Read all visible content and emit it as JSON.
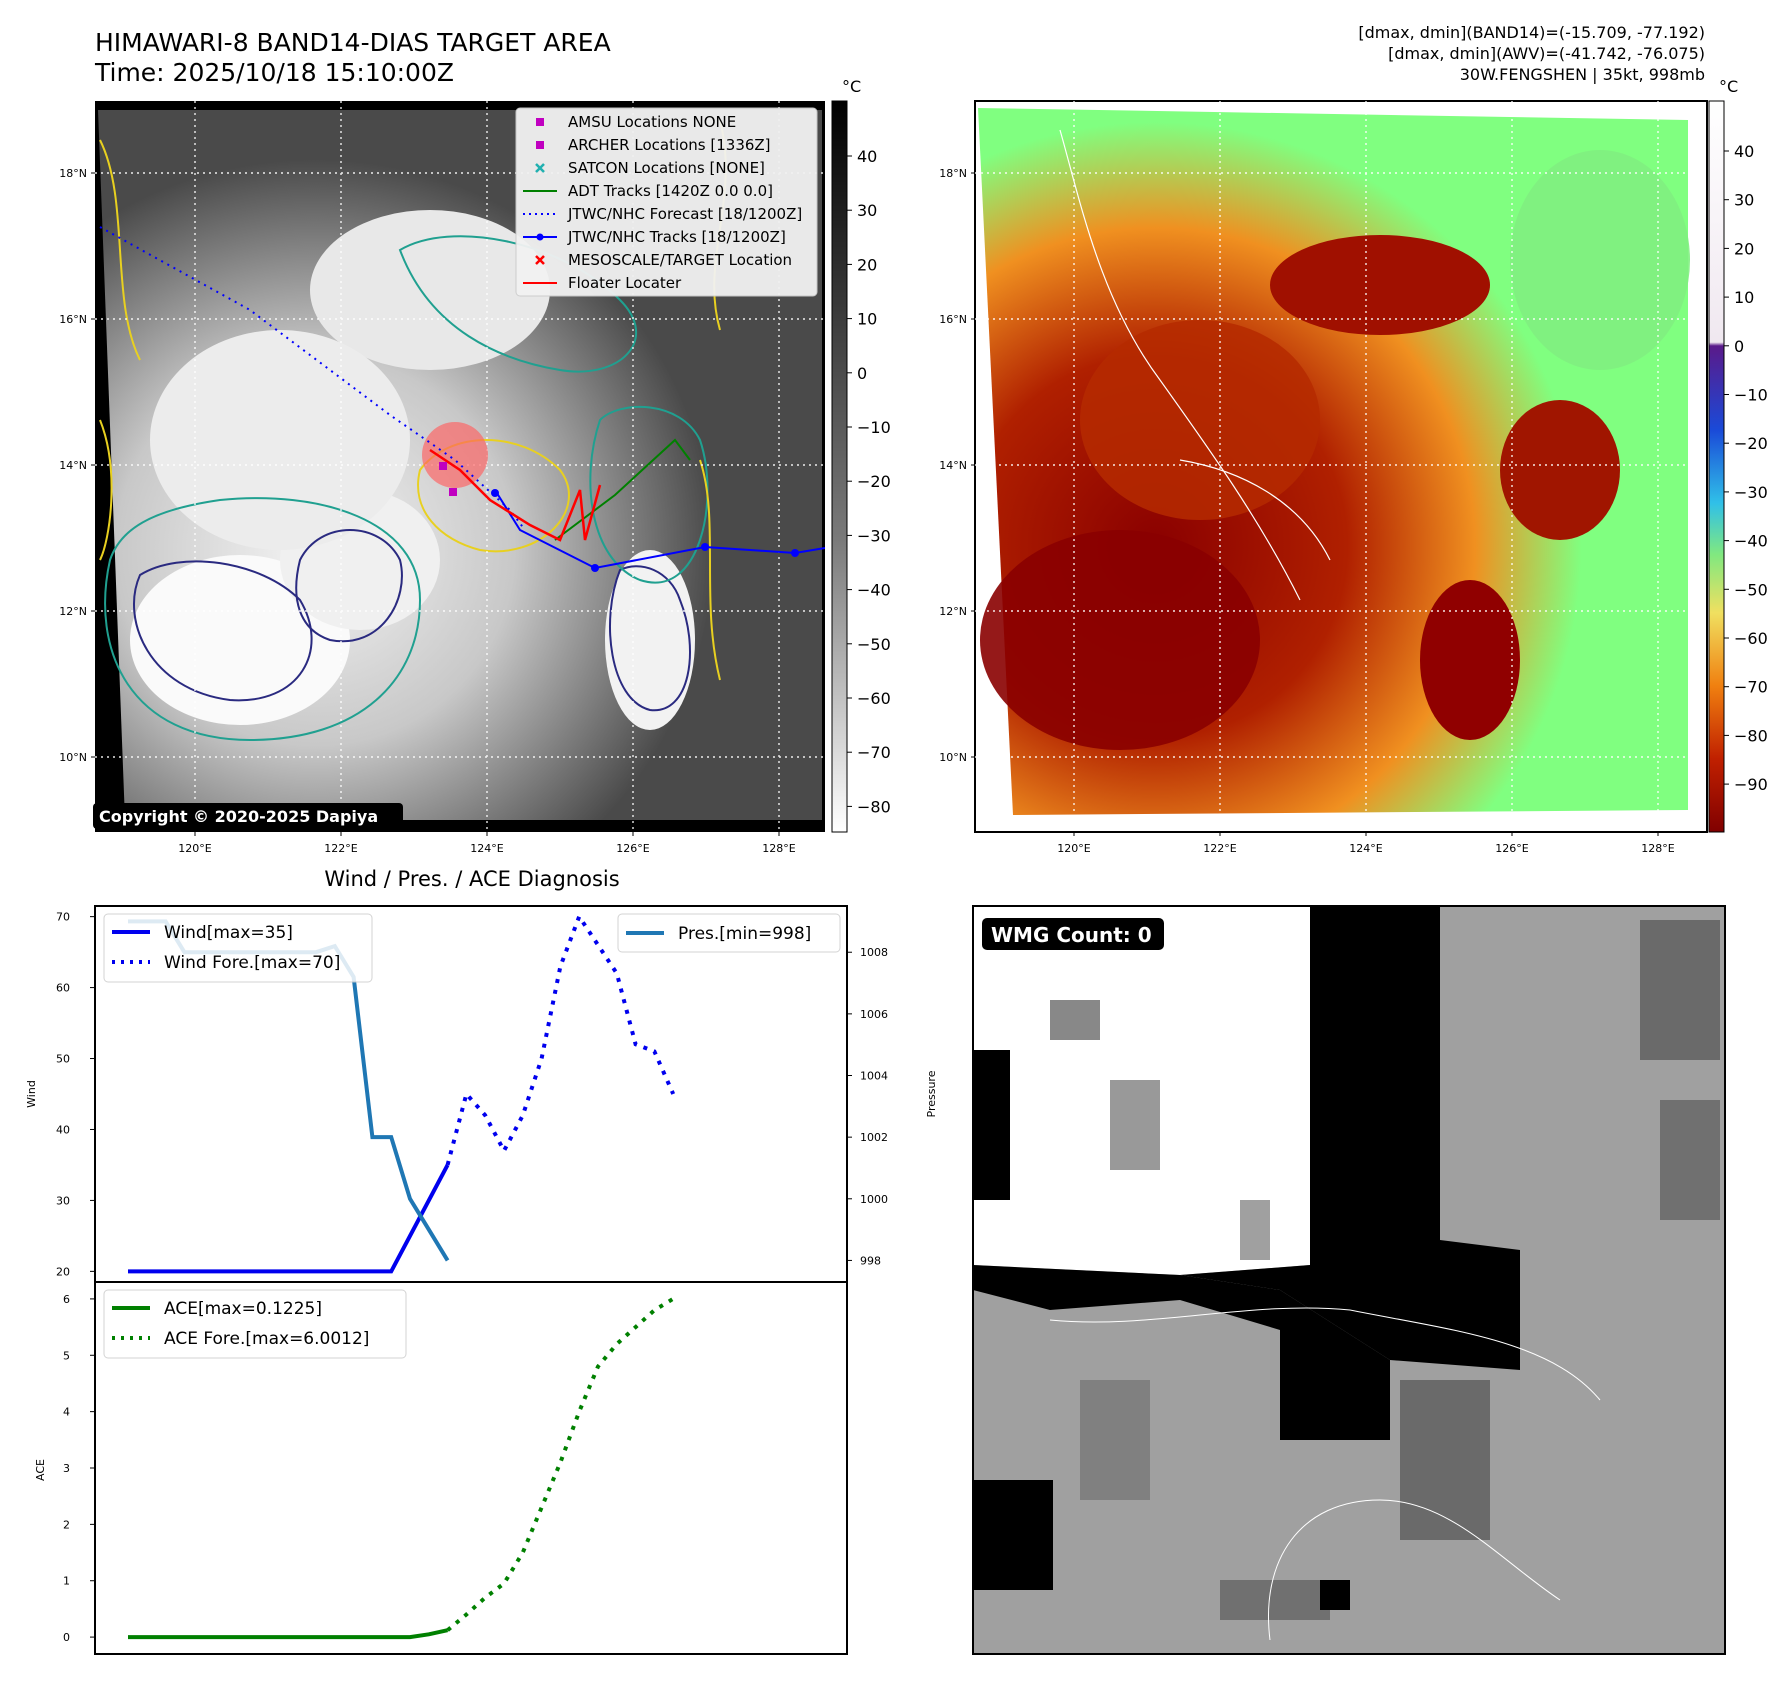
{
  "header": {
    "title_line1": "HIMAWARI-8 BAND14-DIAS TARGET AREA",
    "title_line2": "Time: 2025/10/18 15:10:00Z",
    "info_line1": "[dmax, dmin](BAND14)=(-15.709, -77.192)",
    "info_line2": "[dmax, dmin](AWV)=(-41.742, -76.075)",
    "info_line3": "30W.FENGSHEN | 35kt, 998mb"
  },
  "ir_panel": {
    "copyright": "Copyright © 2020-2025 Dapiya",
    "colorbar_unit": "°C",
    "colorbar_ticks": [
      "40",
      "30",
      "20",
      "10",
      "0",
      "−10",
      "−20",
      "−30",
      "−40",
      "−50",
      "−60",
      "−70",
      "−80"
    ],
    "lat_labels": [
      "18°N",
      "16°N",
      "14°N",
      "12°N",
      "10°N"
    ],
    "lon_labels": [
      "120°E",
      "122°E",
      "124°E",
      "126°E",
      "128°E"
    ],
    "legend": [
      {
        "label": "AMSU Locations NONE",
        "color": "#c000c0",
        "marker": "square"
      },
      {
        "label": "ARCHER Locations [1336Z]",
        "color": "#c000c0",
        "marker": "square"
      },
      {
        "label": "SATCON Locations [NONE]",
        "color": "#20b0b0",
        "marker": "x"
      },
      {
        "label": "ADT Tracks [1420Z 0.0 0.0]",
        "color": "#008000",
        "marker": "line"
      },
      {
        "label": "JTWC/NHC Forecast [18/1200Z]",
        "color": "#0000ff",
        "marker": "dotted"
      },
      {
        "label": "JTWC/NHC Tracks [18/1200Z]",
        "color": "#0000ff",
        "marker": "line-dot"
      },
      {
        "label": "MESOSCALE/TARGET Location",
        "color": "#ff0000",
        "marker": "x"
      },
      {
        "label": "Floater Locater",
        "color": "#ff0000",
        "marker": "line"
      }
    ]
  },
  "awv_panel": {
    "colorbar_unit": "°C",
    "colorbar_ticks": [
      "40",
      "30",
      "20",
      "10",
      "0",
      "−10",
      "−20",
      "−30",
      "−40",
      "−50",
      "−60",
      "−70",
      "−80",
      "−90"
    ],
    "lat_labels": [
      "18°N",
      "16°N",
      "14°N",
      "12°N",
      "10°N"
    ],
    "lon_labels": [
      "120°E",
      "122°E",
      "124°E",
      "126°E",
      "128°E"
    ]
  },
  "wmg_panel": {
    "badge": "WMG Count: 0"
  },
  "chart_data": [
    {
      "type": "line",
      "title": "Wind / Pres. / ACE Diagnosis",
      "ylabel": "Wind",
      "ylabel_right": "Pressure",
      "ylim": [
        18.5,
        71.5
      ],
      "ylim_right": [
        997.3,
        1009.5
      ],
      "yticks": [
        "70",
        "60",
        "50",
        "40",
        "30",
        "20"
      ],
      "yticks_right": [
        "1008",
        "1006",
        "1004",
        "1002",
        "1000",
        "998"
      ],
      "x": [
        0,
        1,
        2,
        3,
        4,
        5,
        6,
        7,
        8,
        9,
        10,
        11,
        12,
        13,
        14,
        15,
        16,
        17,
        18,
        19,
        20,
        21,
        22,
        23,
        24,
        25,
        26,
        27,
        28,
        29
      ],
      "series": [
        {
          "name": "Wind[max=35]",
          "axis": "left",
          "color": "#0000ee",
          "style": "solid",
          "x": [
            0,
            1,
            2,
            3,
            4,
            5,
            6,
            7,
            8,
            9,
            10,
            11,
            12,
            13,
            14,
            15,
            16,
            17
          ],
          "values": [
            20,
            20,
            20,
            20,
            20,
            20,
            20,
            20,
            20,
            20,
            20,
            20,
            20,
            20,
            20,
            25,
            30,
            35
          ]
        },
        {
          "name": "Wind Fore.[max=70]",
          "axis": "left",
          "color": "#0000ee",
          "style": "dotted",
          "x": [
            17,
            18,
            19,
            20,
            21,
            22,
            23,
            24,
            25,
            26,
            27,
            28,
            29
          ],
          "values": [
            35,
            45,
            42,
            37,
            42,
            50,
            63,
            70,
            66,
            62,
            52,
            51,
            45
          ]
        },
        {
          "name": "Pres.[min=998]",
          "axis": "right",
          "color": "#1f77b4",
          "style": "solid",
          "x": [
            0,
            1,
            2,
            3,
            4,
            5,
            6,
            7,
            8,
            9,
            10,
            11,
            12,
            13,
            14,
            15,
            16,
            17
          ],
          "values": [
            1009,
            1009,
            1009,
            1008,
            1008,
            1008,
            1008,
            1008,
            1008,
            1008,
            1008,
            1008.2,
            1007.2,
            1002,
            1002,
            1000,
            999,
            998
          ]
        }
      ]
    },
    {
      "type": "line",
      "ylabel": "ACE",
      "ylim": [
        -0.3,
        6.3
      ],
      "yticks": [
        "6",
        "5",
        "4",
        "3",
        "2",
        "1",
        "0"
      ],
      "series": [
        {
          "name": "ACE[max=0.1225]",
          "color": "#008000",
          "style": "solid",
          "x": [
            0,
            1,
            2,
            3,
            4,
            5,
            6,
            7,
            8,
            9,
            10,
            11,
            12,
            13,
            14,
            15,
            16,
            17
          ],
          "values": [
            0,
            0,
            0,
            0,
            0,
            0,
            0,
            0,
            0,
            0,
            0,
            0,
            0,
            0,
            0,
            0,
            0.05,
            0.1225
          ]
        },
        {
          "name": "ACE Fore.[max=6.0012]",
          "color": "#008000",
          "style": "dotted",
          "x": [
            17,
            18,
            19,
            20,
            21,
            22,
            23,
            24,
            25,
            26,
            27,
            28,
            29
          ],
          "values": [
            0.1225,
            0.4,
            0.7,
            0.95,
            1.5,
            2.3,
            3.1,
            4.0,
            4.8,
            5.2,
            5.5,
            5.8,
            6.0012
          ]
        }
      ]
    }
  ]
}
